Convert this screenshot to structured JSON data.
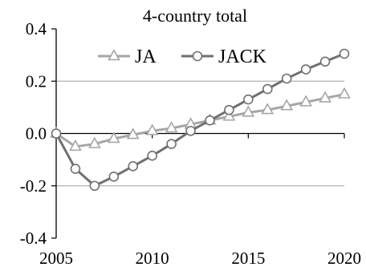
{
  "chart_data": {
    "type": "line",
    "title": "4-country total",
    "xlabel": "",
    "ylabel": "",
    "xlim": [
      2005,
      2020
    ],
    "ylim": [
      -0.4,
      0.4
    ],
    "x_ticks": [
      "2005",
      "2010",
      "2015",
      "2020"
    ],
    "y_ticks": [
      "0.4",
      "0.2",
      "0.0",
      "-0.2",
      "-0.4"
    ],
    "y_tick_values": [
      0.4,
      0.2,
      0.0,
      -0.2,
      -0.4
    ],
    "x_tick_values": [
      2005,
      2010,
      2015,
      2020
    ],
    "gridlines_y": [
      0.2,
      -0.2
    ],
    "grid": true,
    "legend_position": "top",
    "x": [
      2005,
      2006,
      2007,
      2008,
      2009,
      2010,
      2011,
      2012,
      2013,
      2014,
      2015,
      2016,
      2017,
      2018,
      2019,
      2020
    ],
    "series": [
      {
        "name": "JA",
        "marker": "triangle",
        "color": "#a6a6a6",
        "values": [
          0.0,
          -0.05,
          -0.04,
          -0.02,
          -0.005,
          0.01,
          0.02,
          0.035,
          0.05,
          0.065,
          0.08,
          0.09,
          0.105,
          0.12,
          0.135,
          0.15
        ]
      },
      {
        "name": "JACK",
        "marker": "circle",
        "color": "#707070",
        "values": [
          0.0,
          -0.135,
          -0.2,
          -0.165,
          -0.125,
          -0.085,
          -0.04,
          0.01,
          0.05,
          0.09,
          0.13,
          0.17,
          0.21,
          0.245,
          0.275,
          0.305
        ]
      }
    ]
  }
}
